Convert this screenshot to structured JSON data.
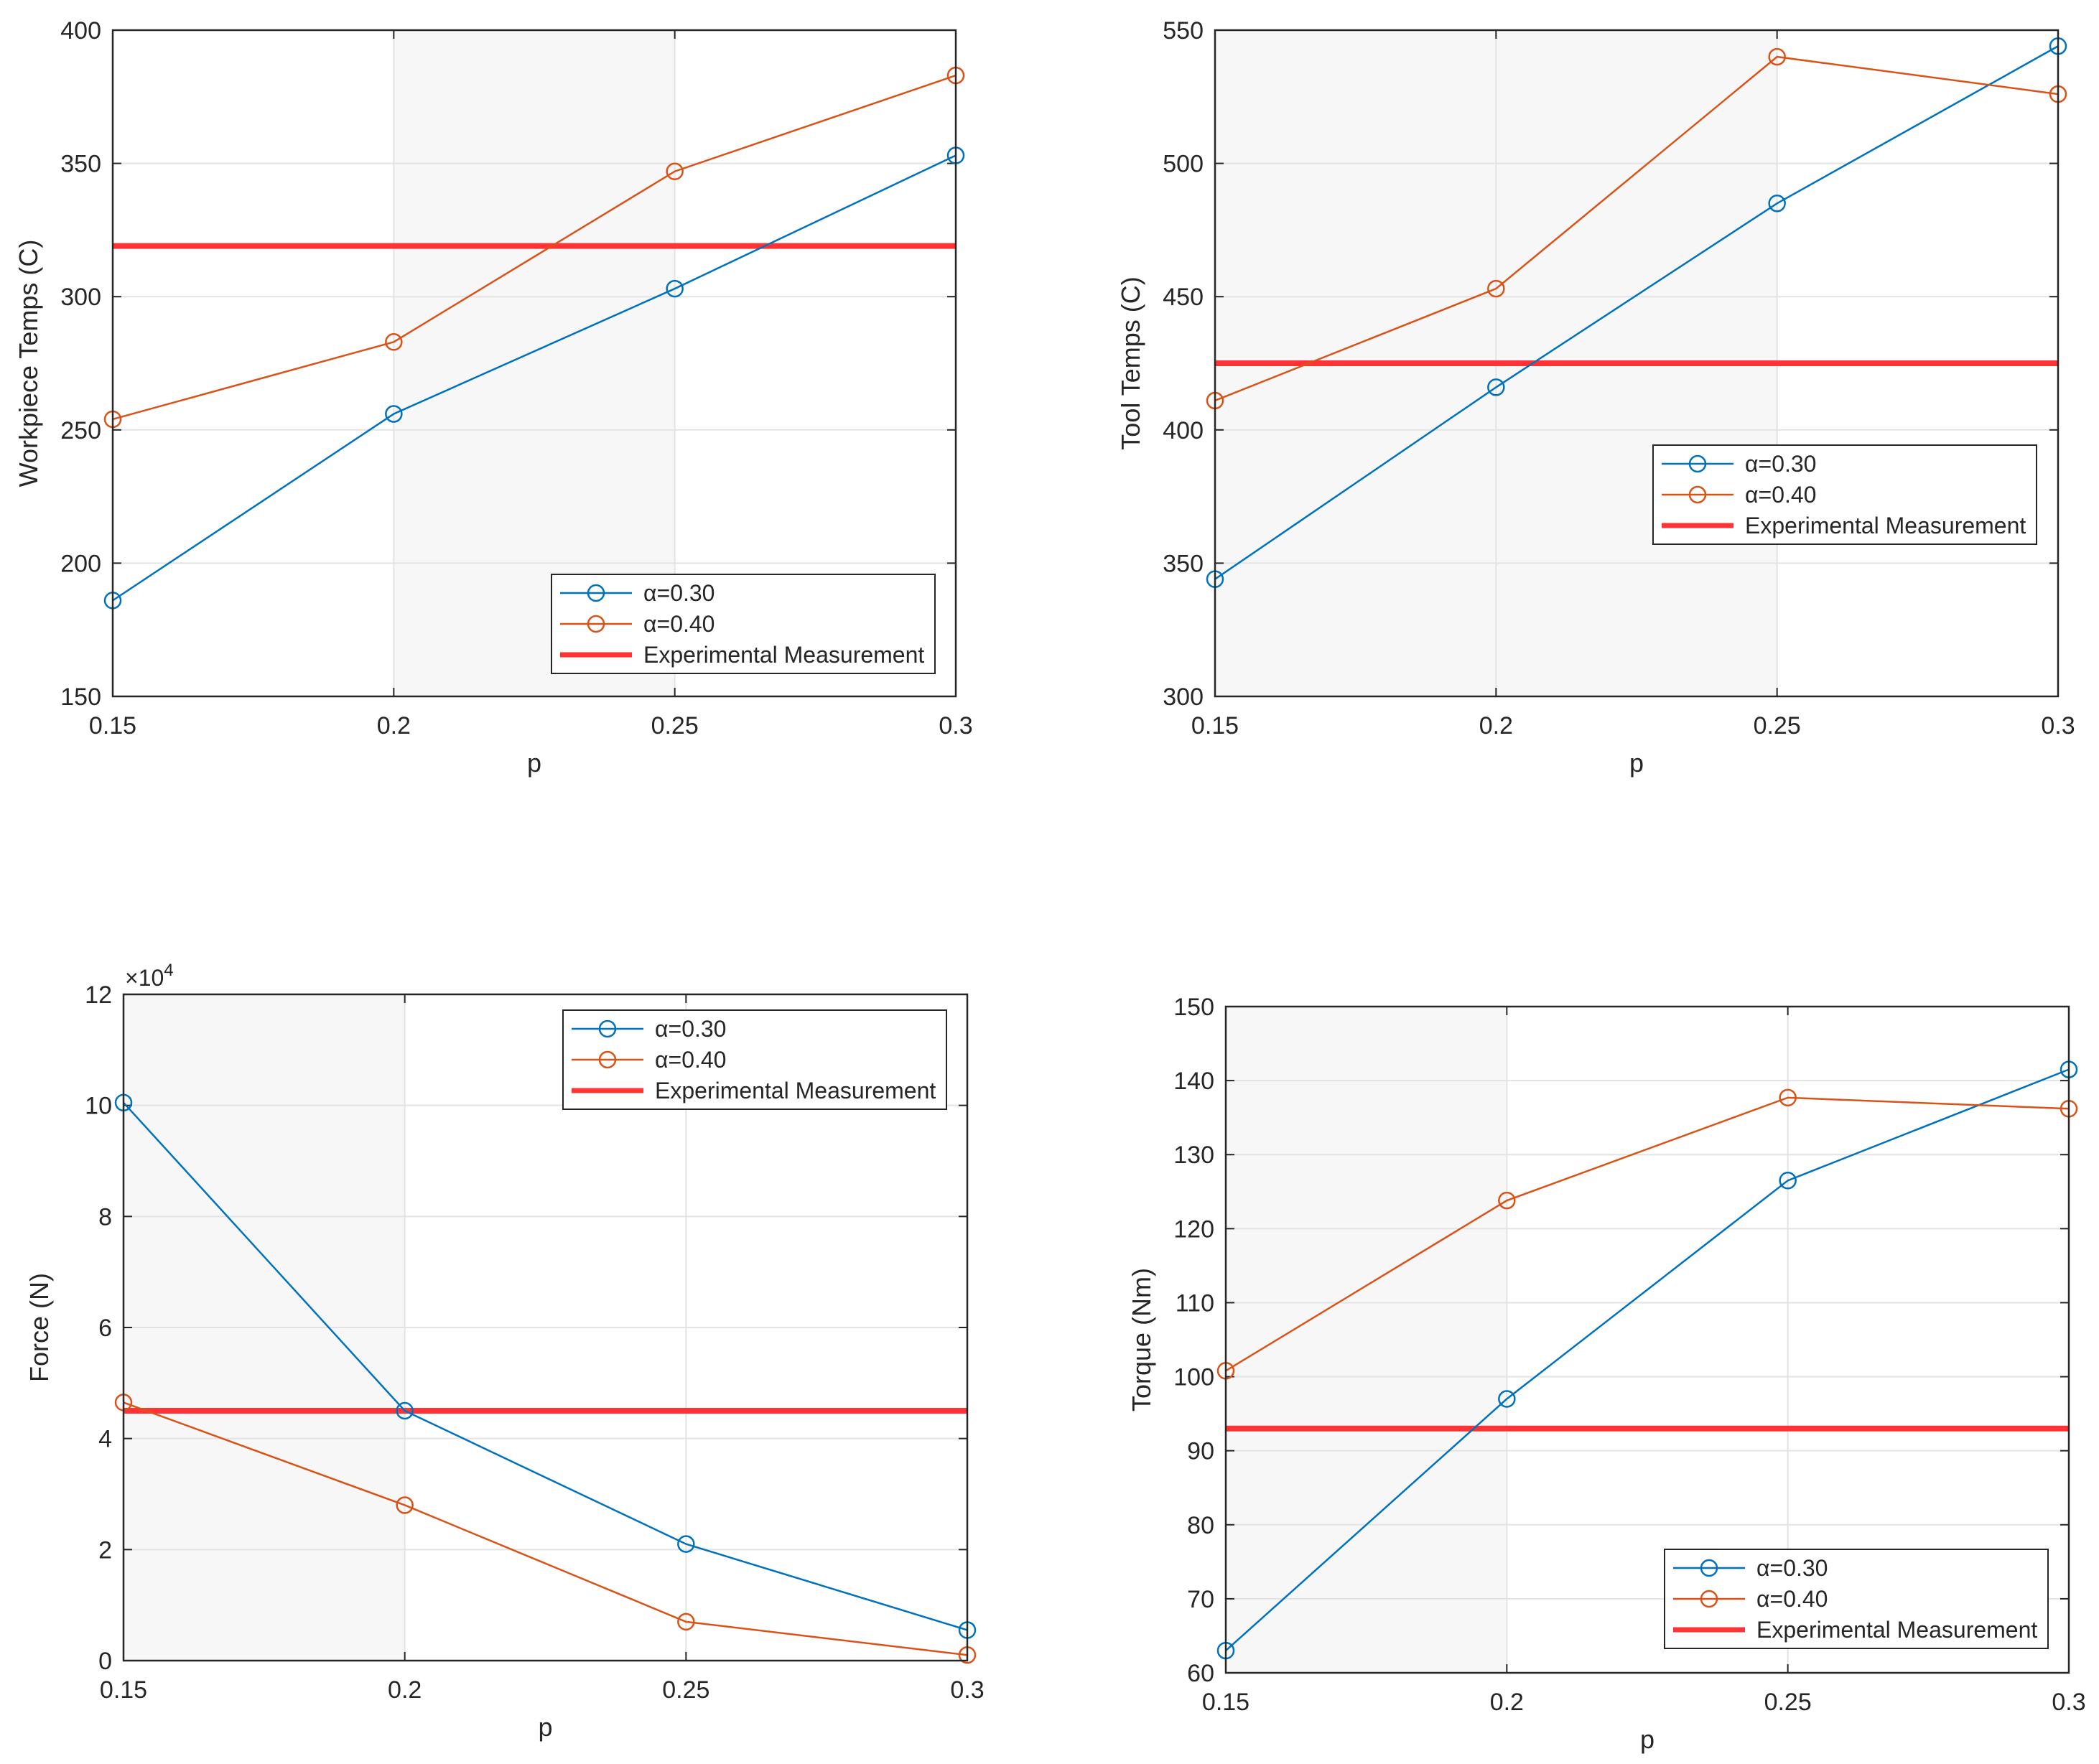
{
  "colors": {
    "series_a": "#0072BD",
    "series_b": "#D95319",
    "measurement": "#FF3333",
    "shade": "#F7F7F7",
    "grid": "#E3E3E3",
    "axis": "#262626"
  },
  "chart_data": [
    {
      "type": "line",
      "title": "",
      "xlabel": "p",
      "ylabel": "Workpiece Temps (C)",
      "x": [
        0.15,
        0.2,
        0.25,
        0.3
      ],
      "xticks": [
        "0.15",
        "0.2",
        "0.25",
        "0.3"
      ],
      "ylim": [
        150,
        400
      ],
      "yticks": [
        150,
        200,
        250,
        300,
        350,
        400
      ],
      "yticklabels": [
        "150",
        "200",
        "250",
        "300",
        "350",
        "400"
      ],
      "shaded_x": [
        0.2,
        0.25
      ],
      "series": [
        {
          "name": "α=0.30",
          "values": [
            186,
            256,
            303,
            353
          ]
        },
        {
          "name": "α=0.40",
          "values": [
            254,
            283,
            347,
            383
          ]
        }
      ],
      "reference": {
        "name": "Experimental Measurement",
        "value": 319
      },
      "legend": "bottom-right"
    },
    {
      "type": "line",
      "title": "",
      "xlabel": "p",
      "ylabel": "Tool Temps (C)",
      "x": [
        0.15,
        0.2,
        0.25,
        0.3
      ],
      "xticks": [
        "0.15",
        "0.2",
        "0.25",
        "0.3"
      ],
      "ylim": [
        300,
        550
      ],
      "yticks": [
        300,
        350,
        400,
        450,
        500,
        550
      ],
      "yticklabels": [
        "300",
        "350",
        "400",
        "450",
        "500",
        "550"
      ],
      "shaded_x": [
        0.15,
        0.25
      ],
      "series": [
        {
          "name": "α=0.30",
          "values": [
            344,
            416,
            485,
            544
          ]
        },
        {
          "name": "α=0.40",
          "values": [
            411,
            453,
            540,
            526
          ]
        }
      ],
      "reference": {
        "name": "Experimental Measurement",
        "value": 425
      },
      "legend": "right-middle"
    },
    {
      "type": "line",
      "title": "",
      "xlabel": "p",
      "ylabel": "Force (N)",
      "y_multiplier": "×10",
      "y_multiplier_exp": "4",
      "x": [
        0.15,
        0.2,
        0.25,
        0.3
      ],
      "xticks": [
        "0.15",
        "0.2",
        "0.25",
        "0.3"
      ],
      "ylim": [
        0,
        12
      ],
      "yticks": [
        0,
        2,
        4,
        6,
        8,
        10,
        12
      ],
      "yticklabels": [
        "0",
        "2",
        "4",
        "6",
        "8",
        "10",
        "12"
      ],
      "shaded_x": [
        0.15,
        0.2
      ],
      "series": [
        {
          "name": "α=0.30",
          "values": [
            10.05,
            4.5,
            2.1,
            0.55
          ]
        },
        {
          "name": "α=0.40",
          "values": [
            4.65,
            2.8,
            0.7,
            0.1
          ]
        }
      ],
      "reference": {
        "name": "Experimental Measurement",
        "value": 4.5
      },
      "legend": "top-right"
    },
    {
      "type": "line",
      "title": "",
      "xlabel": "p",
      "ylabel": "Torque (Nm)",
      "x": [
        0.15,
        0.2,
        0.25,
        0.3
      ],
      "xticks": [
        "0.15",
        "0.2",
        "0.25",
        "0.3"
      ],
      "ylim": [
        60,
        150
      ],
      "yticks": [
        60,
        70,
        80,
        90,
        100,
        110,
        120,
        130,
        140,
        150
      ],
      "yticklabels": [
        "60",
        "70",
        "80",
        "90",
        "100",
        "110",
        "120",
        "130",
        "140",
        "150"
      ],
      "shaded_x": [
        0.15,
        0.2
      ],
      "series": [
        {
          "name": "α=0.30",
          "values": [
            63,
            97,
            126.5,
            141.5
          ]
        },
        {
          "name": "α=0.40",
          "values": [
            100.8,
            123.8,
            137.7,
            136.2
          ]
        }
      ],
      "reference": {
        "name": "Experimental Measurement",
        "value": 93
      },
      "legend": "bottom-right"
    }
  ]
}
